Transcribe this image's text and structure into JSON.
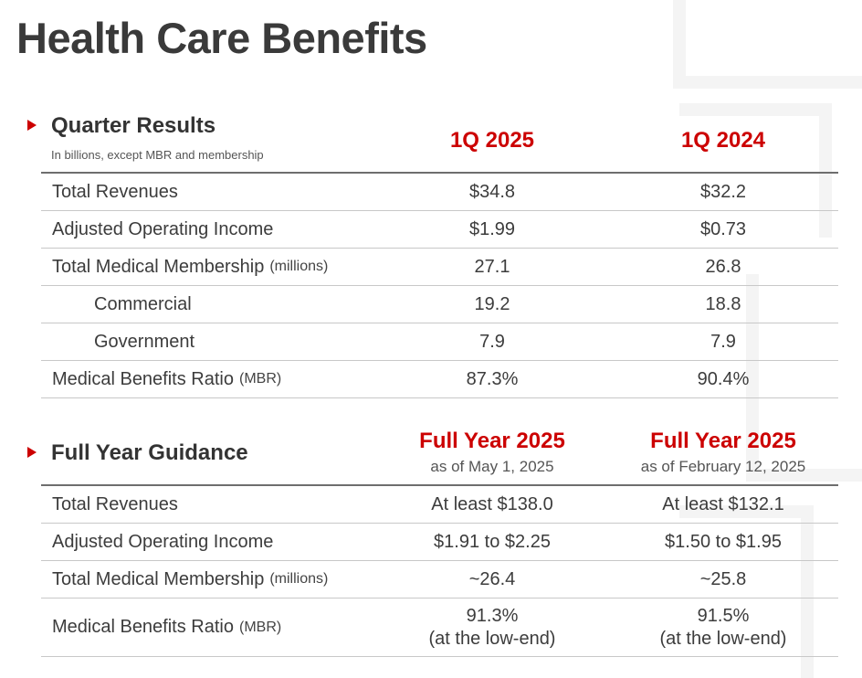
{
  "page": {
    "title": "Health Care Benefits"
  },
  "quarter": {
    "title": "Quarter Results",
    "subtitle": "In billions, except MBR and membership",
    "col_a": "1Q 2025",
    "col_b": "1Q 2024",
    "rows": [
      {
        "label": "Total Revenues",
        "unit": "",
        "a": "$34.8",
        "b": "$32.2"
      },
      {
        "label": "Adjusted Operating Income",
        "unit": "",
        "a": "$1.99",
        "b": "$0.73"
      },
      {
        "label": "Total Medical Membership",
        "unit": "(millions)",
        "a": "27.1",
        "b": "26.8"
      },
      {
        "label": "Commercial",
        "unit": "",
        "a": "19.2",
        "b": "18.8"
      },
      {
        "label": "Government",
        "unit": "",
        "a": "7.9",
        "b": "7.9"
      },
      {
        "label": "Medical Benefits Ratio",
        "unit": "(MBR)",
        "a": "87.3%",
        "b": "90.4%"
      }
    ]
  },
  "guidance": {
    "title": "Full Year Guidance",
    "col_a": "Full Year 2025",
    "col_a_sub": "as of May 1, 2025",
    "col_b": "Full Year 2025",
    "col_b_sub": "as of February 12, 2025",
    "rows": [
      {
        "label": "Total Revenues",
        "unit": "",
        "a": "At least $138.0",
        "b": "At least $132.1"
      },
      {
        "label": "Adjusted Operating Income",
        "unit": "",
        "a": "$1.91 to $2.25",
        "b": "$1.50 to $1.95"
      },
      {
        "label": "Total Medical Membership",
        "unit": "(millions)",
        "a": "~26.4",
        "b": "~25.8"
      },
      {
        "label": "Medical Benefits Ratio",
        "unit": "(MBR)",
        "a": "91.3%",
        "a2": "(at the low-end)",
        "b": "91.5%",
        "b2": "(at the low-end)"
      }
    ]
  }
}
